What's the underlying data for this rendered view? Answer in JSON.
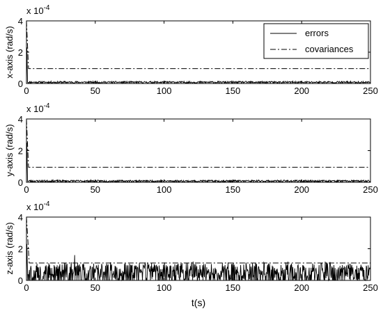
{
  "chart_data": [
    {
      "type": "line",
      "ylabel": "x-axis (rad/s)",
      "xlabel": "",
      "xlim": [
        0,
        250
      ],
      "ylim": [
        0,
        4
      ],
      "y_exponent": "x 10",
      "y_exponent_power": "-4",
      "x_ticks": [
        "0",
        "50",
        "100",
        "150",
        "200",
        "250"
      ],
      "y_ticks": [
        "0",
        "2",
        "4"
      ],
      "legend": {
        "position": "top-right",
        "entries": [
          "errors",
          "covariances"
        ]
      },
      "series": [
        {
          "name": "errors",
          "style": "solid",
          "color": "#000000",
          "initial_spike": 2.3,
          "mean": 0.08,
          "amplitude": 0.06,
          "seed": 11
        },
        {
          "name": "covariances",
          "style": "dash-dot",
          "color": "#000000",
          "initial_value": 4.0,
          "settle_time": 1.5,
          "value": 0.95
        }
      ]
    },
    {
      "type": "line",
      "ylabel": "y-axis (rad/s)",
      "xlabel": "",
      "xlim": [
        0,
        250
      ],
      "ylim": [
        0,
        4
      ],
      "y_exponent": "x 10",
      "y_exponent_power": "-4",
      "x_ticks": [
        "0",
        "50",
        "100",
        "150",
        "200",
        "250"
      ],
      "y_ticks": [
        "0",
        "2",
        "4"
      ],
      "series": [
        {
          "name": "errors",
          "style": "solid",
          "color": "#000000",
          "initial_spike": 2.5,
          "mean": 0.08,
          "amplitude": 0.06,
          "seed": 23
        },
        {
          "name": "covariances",
          "style": "dash-dot",
          "color": "#000000",
          "initial_value": 4.0,
          "settle_time": 1.5,
          "value": 0.95
        }
      ]
    },
    {
      "type": "line",
      "ylabel": "z-axis (rad/s)",
      "xlabel": "t(s)",
      "xlim": [
        0,
        250
      ],
      "ylim": [
        0,
        4
      ],
      "y_exponent": "x 10",
      "y_exponent_power": "-4",
      "x_ticks": [
        "0",
        "50",
        "100",
        "150",
        "200",
        "250"
      ],
      "y_ticks": [
        "0",
        "2",
        "4"
      ],
      "series": [
        {
          "name": "errors",
          "style": "solid",
          "color": "#000000",
          "initial_spike": 2.3,
          "mean": 0.35,
          "amplitude": 0.75,
          "peak": 1.6,
          "peak_t": 35,
          "seed": 37
        },
        {
          "name": "covariances",
          "style": "dash-dot",
          "color": "#000000",
          "initial_value": 4.0,
          "settle_time": 2,
          "value": 1.1
        }
      ]
    }
  ]
}
